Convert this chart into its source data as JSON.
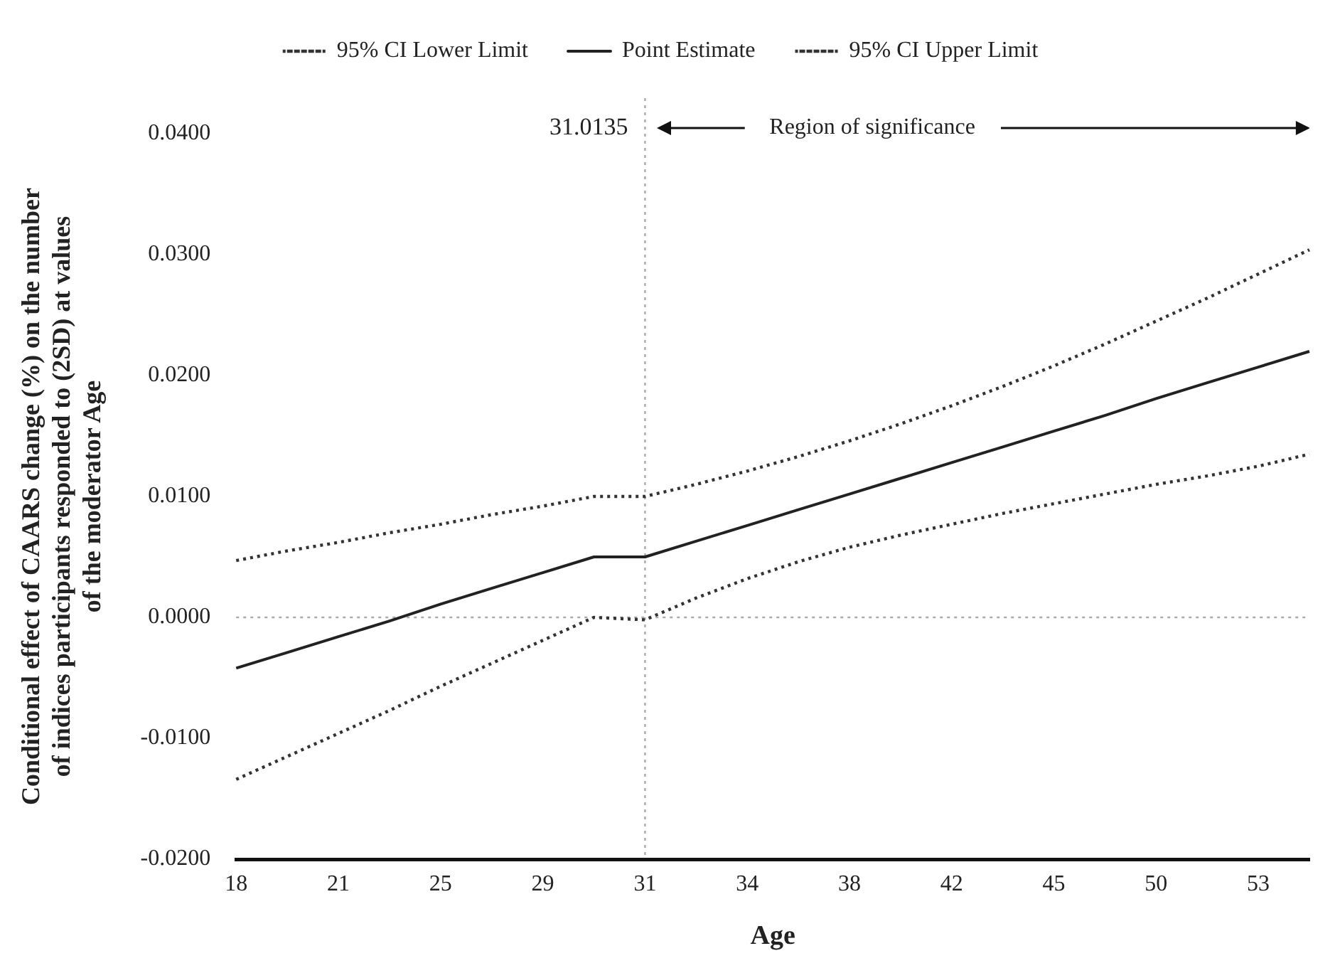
{
  "chart_data": {
    "type": "line",
    "xlabel": "Age",
    "ylabel": "Conditional effect of CAARS change (%) on the number of indices participants responded to (2SD) at values of the moderator Age",
    "categories": [
      "18",
      null,
      "21",
      null,
      "25",
      null,
      "29",
      null,
      "31",
      null,
      "34",
      null,
      "38",
      null,
      "42",
      null,
      "45",
      null,
      "50",
      null,
      "53",
      null
    ],
    "series": [
      {
        "name": "95% CI Lower Limit",
        "color": "#333333",
        "line_style": "dotted",
        "values": [
          -0.0134,
          -0.0115,
          -0.0096,
          -0.0077,
          -0.0057,
          -0.0038,
          -0.0019,
          0.0,
          -0.0002,
          0.0016,
          0.0032,
          0.0046,
          0.0058,
          0.0068,
          0.0077,
          0.0086,
          0.0094,
          0.0102,
          0.011,
          0.0117,
          0.0125,
          0.0135
        ]
      },
      {
        "name": "Point Estimate",
        "color": "#222222",
        "line_style": "solid",
        "values": [
          -0.0042,
          -0.0029,
          -0.0016,
          -0.0003,
          0.0011,
          0.0024,
          0.0037,
          0.005,
          0.005,
          0.0063,
          0.0076,
          0.0089,
          0.0102,
          0.0115,
          0.0128,
          0.0141,
          0.0154,
          0.0167,
          0.0181,
          0.0194,
          0.0207,
          0.022
        ]
      },
      {
        "name": "95% CI Upper Limit",
        "color": "#333333",
        "line_style": "dotted",
        "values": [
          0.0047,
          0.0055,
          0.0062,
          0.007,
          0.0077,
          0.0085,
          0.0092,
          0.01,
          0.01,
          0.011,
          0.0121,
          0.0133,
          0.0146,
          0.016,
          0.0175,
          0.0191,
          0.0208,
          0.0226,
          0.0245,
          0.0264,
          0.0284,
          0.0304
        ]
      }
    ],
    "ylim": [
      -0.02,
      0.04
    ],
    "yticks": [
      {
        "value": -0.02,
        "label": "-0.0200"
      },
      {
        "value": -0.01,
        "label": "-0.0100"
      },
      {
        "value": 0,
        "label": "0.0000"
      },
      {
        "value": 0.01,
        "label": "0.0100"
      },
      {
        "value": 0.02,
        "label": "0.0200"
      },
      {
        "value": 0.03,
        "label": "0.0300"
      },
      {
        "value": 0.04,
        "label": "0.0400"
      }
    ],
    "ref_lines": [
      {
        "axis": "y",
        "value": 0,
        "color": "#aaaaaa",
        "line_style": "dotted"
      },
      {
        "axis": "x",
        "value": "31",
        "label": "31.0135",
        "color": "#aaaaaa",
        "line_style": "dotted"
      }
    ],
    "annotations": [
      "Region of significance"
    ],
    "grid": false,
    "legend": "top",
    "marker": "none"
  }
}
